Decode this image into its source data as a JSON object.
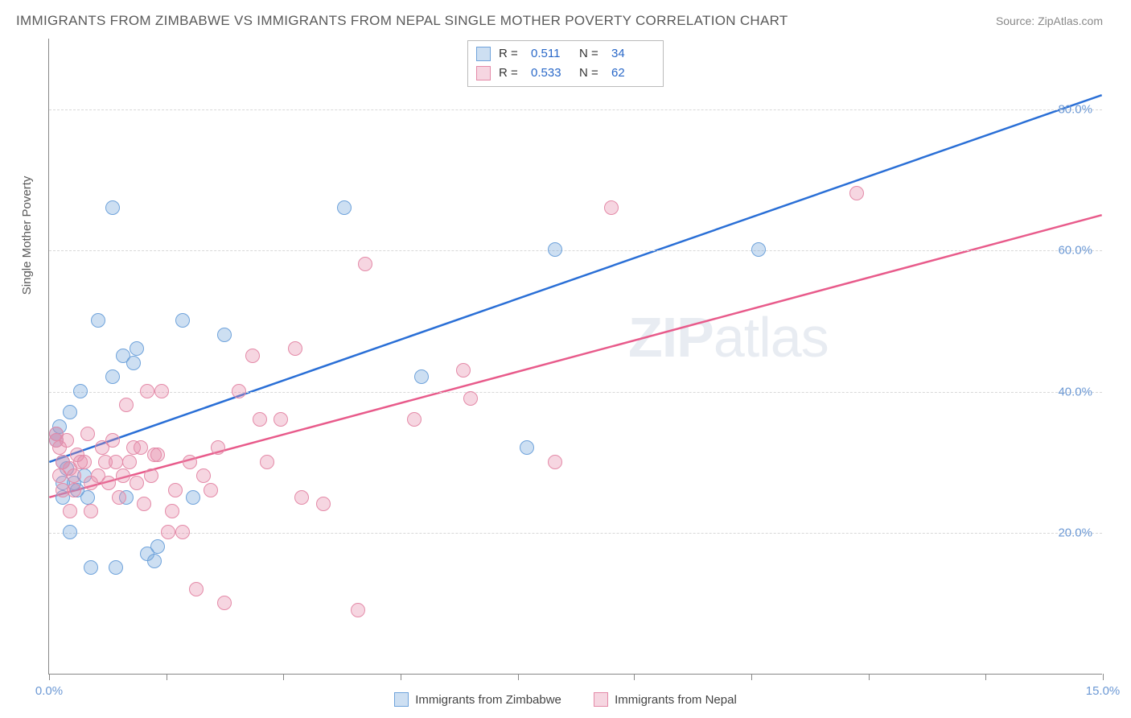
{
  "title": "IMMIGRANTS FROM ZIMBABWE VS IMMIGRANTS FROM NEPAL SINGLE MOTHER POVERTY CORRELATION CHART",
  "source": "Source: ZipAtlas.com",
  "ylabel": "Single Mother Poverty",
  "watermark_bold": "ZIP",
  "watermark_light": "atlas",
  "chart": {
    "type": "scatter",
    "xlim": [
      0,
      15
    ],
    "ylim": [
      0,
      90
    ],
    "y_gridlines": [
      20,
      40,
      60,
      80
    ],
    "y_tick_labels": [
      "20.0%",
      "40.0%",
      "60.0%",
      "80.0%"
    ],
    "x_ticks": [
      0,
      1.67,
      3.33,
      5.0,
      6.67,
      8.33,
      10.0,
      11.67,
      13.33,
      15.0
    ],
    "x_tick_labels_visible": {
      "0": "0.0%",
      "15": "15.0%"
    },
    "background_color": "#ffffff",
    "grid_color": "#d8d8d8",
    "axis_color": "#888888",
    "tick_label_color": "#6b98d4",
    "marker_radius": 9,
    "marker_opacity_fill": 0.35,
    "series": [
      {
        "name": "Immigrants from Zimbabwe",
        "color_stroke": "#6fa3db",
        "color_fill": "rgba(111,163,219,0.35)",
        "R": 0.511,
        "N": 34,
        "trend": {
          "x1": 0,
          "y1": 30,
          "x2": 15,
          "y2": 82,
          "color": "#2a6fd6",
          "width": 2.5
        },
        "points": [
          [
            0.1,
            33
          ],
          [
            0.1,
            34
          ],
          [
            0.15,
            35
          ],
          [
            0.2,
            30
          ],
          [
            0.2,
            27
          ],
          [
            0.25,
            29
          ],
          [
            0.2,
            25
          ],
          [
            0.3,
            37
          ],
          [
            0.3,
            20
          ],
          [
            0.35,
            27
          ],
          [
            0.4,
            26
          ],
          [
            0.45,
            40
          ],
          [
            0.5,
            28
          ],
          [
            0.55,
            25
          ],
          [
            0.6,
            15
          ],
          [
            0.7,
            50
          ],
          [
            0.9,
            66
          ],
          [
            0.9,
            42
          ],
          [
            0.95,
            15
          ],
          [
            1.05,
            45
          ],
          [
            1.1,
            25
          ],
          [
            1.2,
            44
          ],
          [
            1.25,
            46
          ],
          [
            1.4,
            17
          ],
          [
            1.5,
            16
          ],
          [
            1.55,
            18
          ],
          [
            1.9,
            50
          ],
          [
            2.05,
            25
          ],
          [
            2.5,
            48
          ],
          [
            4.2,
            66
          ],
          [
            5.3,
            42
          ],
          [
            6.8,
            32
          ],
          [
            7.2,
            60
          ],
          [
            10.1,
            60
          ]
        ]
      },
      {
        "name": "Immigrants from Nepal",
        "color_stroke": "#e48aa8",
        "color_fill": "rgba(228,138,168,0.35)",
        "R": 0.533,
        "N": 62,
        "trend": {
          "x1": 0,
          "y1": 25,
          "x2": 15,
          "y2": 65,
          "color": "#e85b8b",
          "width": 2.5
        },
        "points": [
          [
            0.1,
            33
          ],
          [
            0.1,
            34
          ],
          [
            0.15,
            32
          ],
          [
            0.15,
            28
          ],
          [
            0.2,
            30
          ],
          [
            0.2,
            26
          ],
          [
            0.25,
            33
          ],
          [
            0.3,
            29
          ],
          [
            0.3,
            23
          ],
          [
            0.35,
            28
          ],
          [
            0.35,
            26
          ],
          [
            0.4,
            31
          ],
          [
            0.45,
            30
          ],
          [
            0.5,
            30
          ],
          [
            0.55,
            34
          ],
          [
            0.6,
            27
          ],
          [
            0.6,
            23
          ],
          [
            0.7,
            28
          ],
          [
            0.75,
            32
          ],
          [
            0.8,
            30
          ],
          [
            0.85,
            27
          ],
          [
            0.9,
            33
          ],
          [
            0.95,
            30
          ],
          [
            1.0,
            25
          ],
          [
            1.05,
            28
          ],
          [
            1.1,
            38
          ],
          [
            1.15,
            30
          ],
          [
            1.2,
            32
          ],
          [
            1.25,
            27
          ],
          [
            1.3,
            32
          ],
          [
            1.35,
            24
          ],
          [
            1.4,
            40
          ],
          [
            1.45,
            28
          ],
          [
            1.5,
            31
          ],
          [
            1.55,
            31
          ],
          [
            1.6,
            40
          ],
          [
            1.7,
            20
          ],
          [
            1.75,
            23
          ],
          [
            1.8,
            26
          ],
          [
            1.9,
            20
          ],
          [
            2.0,
            30
          ],
          [
            2.1,
            12
          ],
          [
            2.2,
            28
          ],
          [
            2.3,
            26
          ],
          [
            2.4,
            32
          ],
          [
            2.5,
            10
          ],
          [
            2.7,
            40
          ],
          [
            2.9,
            45
          ],
          [
            3.0,
            36
          ],
          [
            3.1,
            30
          ],
          [
            3.3,
            36
          ],
          [
            3.5,
            46
          ],
          [
            3.6,
            25
          ],
          [
            3.9,
            24
          ],
          [
            4.4,
            9
          ],
          [
            4.5,
            58
          ],
          [
            5.2,
            36
          ],
          [
            5.9,
            43
          ],
          [
            6.0,
            39
          ],
          [
            7.2,
            30
          ],
          [
            8.0,
            66
          ],
          [
            11.5,
            68
          ]
        ]
      }
    ]
  },
  "legend_top": {
    "r_label": "R  =",
    "n_label": "N  ="
  },
  "legend_bottom_labels": [
    "Immigrants from Zimbabwe",
    "Immigrants from Nepal"
  ]
}
